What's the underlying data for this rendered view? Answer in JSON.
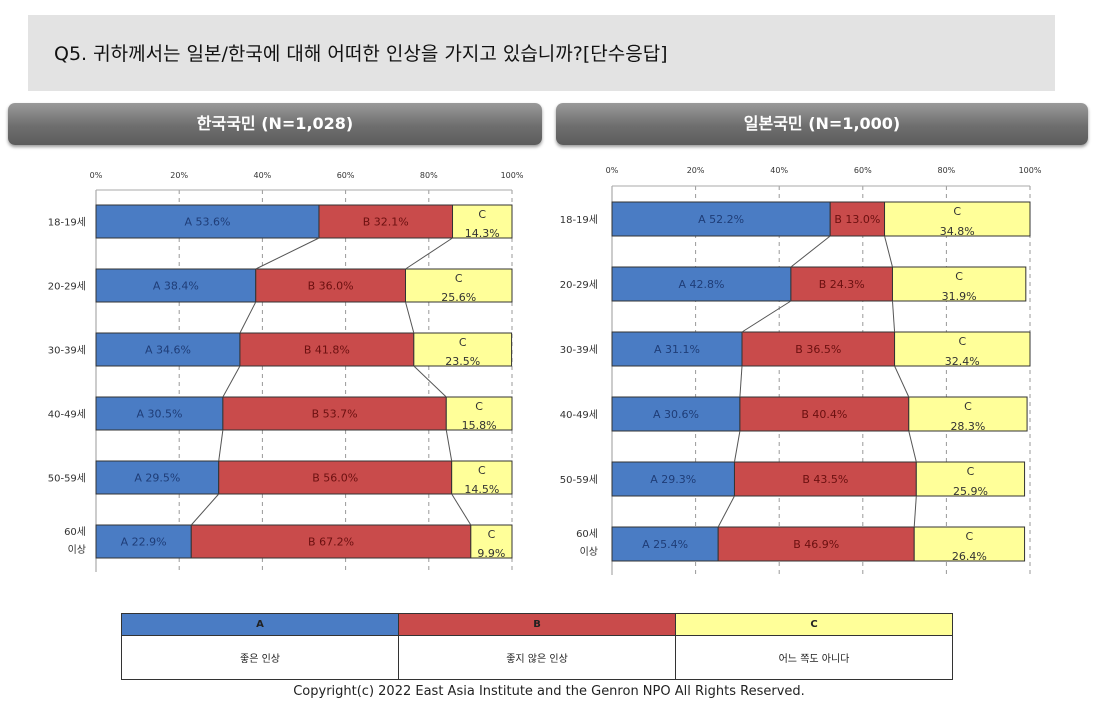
{
  "question": "Q5. 귀하께서는 일본/한국에 대해 어떠한 인상을 가지고 있습니까?[단수응답]",
  "colors": {
    "A": "#4a7cc4",
    "B": "#c94b4b",
    "C": "#ffff99"
  },
  "legend": [
    {
      "code": "A",
      "label": "좋은 인상"
    },
    {
      "code": "B",
      "label": "좋지 않은 인상"
    },
    {
      "code": "C",
      "label": "어느 쪽도 아니다"
    }
  ],
  "copyright": "Copyright(c) 2022 East Asia Institute and the Genron NPO All Rights Reserved.",
  "chart_data": [
    {
      "type": "bar",
      "stacked": true,
      "orientation": "horizontal",
      "title": "한국국민 (N=1,028)",
      "categories": [
        "18-19세",
        "20-29세",
        "30-39세",
        "40-49세",
        "50-59세",
        "60세 이상"
      ],
      "xticks": [
        "0%",
        "20%",
        "40%",
        "60%",
        "80%",
        "100%"
      ],
      "xlim": [
        0,
        100
      ],
      "series": [
        {
          "name": "A",
          "values": [
            53.6,
            38.4,
            34.6,
            30.5,
            29.5,
            22.9
          ]
        },
        {
          "name": "B",
          "values": [
            32.1,
            36.0,
            41.8,
            53.7,
            56.0,
            67.2
          ]
        },
        {
          "name": "C",
          "values": [
            14.3,
            25.6,
            23.5,
            15.8,
            14.5,
            9.9
          ]
        }
      ]
    },
    {
      "type": "bar",
      "stacked": true,
      "orientation": "horizontal",
      "title": "일본국민 (N=1,000)",
      "categories": [
        "18-19세",
        "20-29세",
        "30-39세",
        "40-49세",
        "50-59세",
        "60세 이상"
      ],
      "xticks": [
        "0%",
        "20%",
        "40%",
        "60%",
        "80%",
        "100%"
      ],
      "xlim": [
        0,
        100
      ],
      "series": [
        {
          "name": "A",
          "values": [
            52.2,
            42.8,
            31.1,
            30.6,
            29.3,
            25.4
          ]
        },
        {
          "name": "B",
          "values": [
            13.0,
            24.3,
            36.5,
            40.4,
            43.5,
            46.9
          ]
        },
        {
          "name": "C",
          "values": [
            34.8,
            31.9,
            32.4,
            28.3,
            25.9,
            26.4
          ]
        }
      ]
    }
  ]
}
